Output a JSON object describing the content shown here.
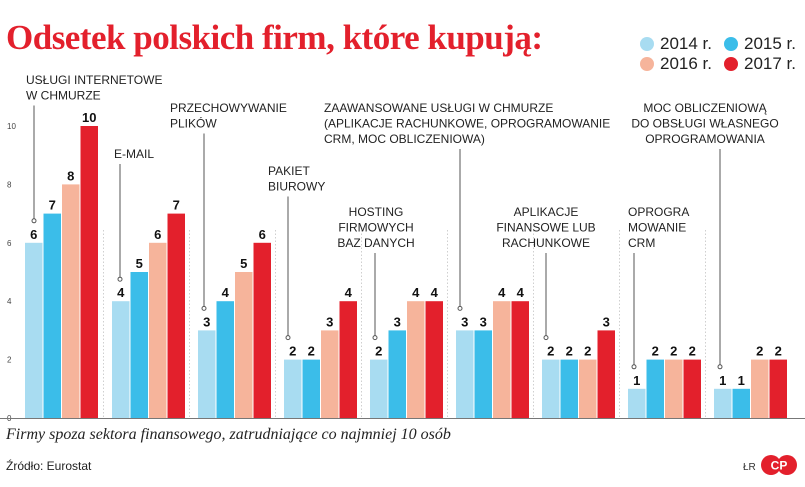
{
  "title": "Odsetek polskich firm, które kupują:",
  "subtitle": "Firmy spoza sektora finansowego, zatrudniające co najmniej 10 osób",
  "source": "Źródło: Eurostat",
  "initials": "ŁR",
  "logo_text": "CP",
  "colors": {
    "s2014": "#a8dcf1",
    "s2015": "#3bbde9",
    "s2016": "#f6b49b",
    "s2017": "#e3202c",
    "brand": "#e3202c"
  },
  "chart_data": {
    "type": "bar",
    "title": "Odsetek polskich firm, które kupują:",
    "xlabel": "",
    "ylabel": "",
    "ylim": [
      0,
      10
    ],
    "yticks": [
      "0",
      "2",
      "4",
      "6",
      "8",
      "10"
    ],
    "legend_position": "top-right",
    "categories": [
      {
        "lines": [
          "USŁUGI INTERNETOWE",
          "W CHMURZE"
        ],
        "align": "left"
      },
      {
        "lines": [
          "E-MAIL"
        ],
        "align": "left"
      },
      {
        "lines": [
          "PRZECHOWYWANIE",
          "PLIKÓW"
        ],
        "align": "left"
      },
      {
        "lines": [
          "PAKIET",
          "BIUROWY"
        ],
        "align": "left"
      },
      {
        "lines": [
          "HOSTING",
          "FIRMOWYCH",
          "BAZ DANYCH"
        ],
        "align": "center"
      },
      {
        "lines": [
          "ZAAWANSOWANE USŁUGI W CHMURZE",
          "(APLIKACJE RACHUNKOWE, OPROGRAMOWANIE",
          "CRM, MOC OBLICZENIOWA)"
        ],
        "align": "left"
      },
      {
        "lines": [
          "APLIKACJE",
          "FINANSOWE LUB",
          "RACHUNKOWE"
        ],
        "align": "center"
      },
      {
        "lines": [
          "OPROGRA",
          "MOWANIE",
          "CRM"
        ],
        "align": "left"
      },
      {
        "lines": [
          "MOC OBLICZENIOWĄ",
          "DO OBSŁUGI WŁASNEGO",
          "OPROGRAMOWANIA"
        ],
        "align": "center"
      }
    ],
    "series": [
      {
        "name": "2014 r.",
        "values": [
          6,
          4,
          3,
          2,
          2,
          3,
          2,
          1,
          1
        ]
      },
      {
        "name": "2015 r.",
        "values": [
          7,
          5,
          4,
          2,
          3,
          3,
          2,
          2,
          1
        ]
      },
      {
        "name": "2016 r.",
        "values": [
          8,
          6,
          5,
          3,
          4,
          4,
          2,
          2,
          2
        ]
      },
      {
        "name": "2017 r.",
        "values": [
          10,
          7,
          6,
          4,
          4,
          4,
          3,
          2,
          2
        ]
      }
    ]
  }
}
